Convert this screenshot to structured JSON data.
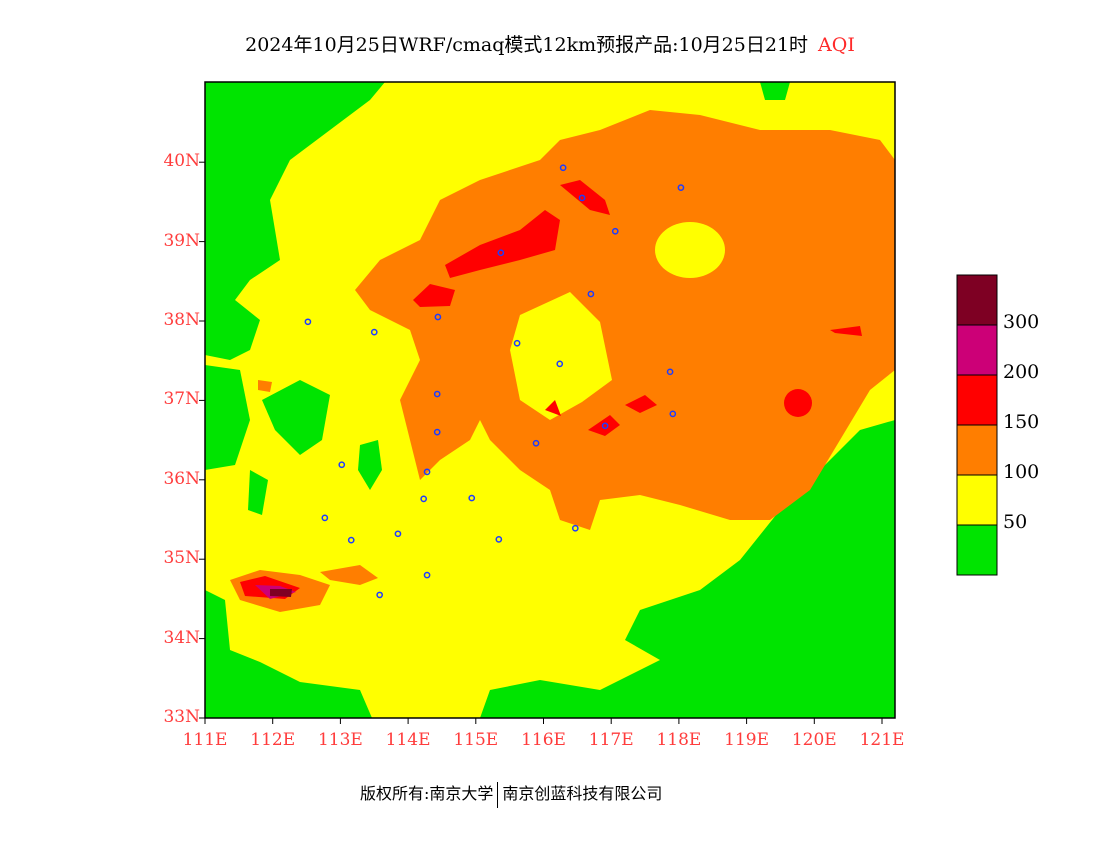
{
  "title": {
    "main": "2024年10月25日WRF/cmaq模式12km预报产品:10月25日21时",
    "variable": "AQI"
  },
  "axes": {
    "lat_labels": [
      "33N",
      "34N",
      "35N",
      "36N",
      "37N",
      "38N",
      "39N",
      "40N"
    ],
    "lon_labels": [
      "111E",
      "112E",
      "113E",
      "114E",
      "115E",
      "116E",
      "117E",
      "118E",
      "119E",
      "120E",
      "121E"
    ],
    "lon_range": [
      111,
      121.2
    ],
    "lat_range": [
      33,
      40.9
    ]
  },
  "legend": {
    "labels": [
      "50",
      "100",
      "150",
      "200",
      "300"
    ],
    "colors": [
      "#00e400",
      "#ffff00",
      "#ff7e00",
      "#ff0000",
      "#cc0077",
      "#7e0023"
    ]
  },
  "stations": [
    [
      116.29,
      39.93
    ],
    [
      116.57,
      39.55
    ],
    [
      118.03,
      39.68
    ],
    [
      117.06,
      39.13
    ],
    [
      115.37,
      38.86
    ],
    [
      116.7,
      38.34
    ],
    [
      114.44,
      38.05
    ],
    [
      112.52,
      37.99
    ],
    [
      113.5,
      37.86
    ],
    [
      115.61,
      37.72
    ],
    [
      116.24,
      37.46
    ],
    [
      117.87,
      37.36
    ],
    [
      114.43,
      37.08
    ],
    [
      117.91,
      36.83
    ],
    [
      116.91,
      36.68
    ],
    [
      114.43,
      36.6
    ],
    [
      115.89,
      36.46
    ],
    [
      113.02,
      36.19
    ],
    [
      114.28,
      36.1
    ],
    [
      114.23,
      35.76
    ],
    [
      114.94,
      35.77
    ],
    [
      112.77,
      35.52
    ],
    [
      116.47,
      35.39
    ],
    [
      113.85,
      35.32
    ],
    [
      113.16,
      35.24
    ],
    [
      115.34,
      35.25
    ],
    [
      114.28,
      34.8
    ],
    [
      113.58,
      34.55
    ]
  ],
  "footer": {
    "copyright": "版权所有:南京大学",
    "company": "南京创蓝科技有限公司"
  }
}
